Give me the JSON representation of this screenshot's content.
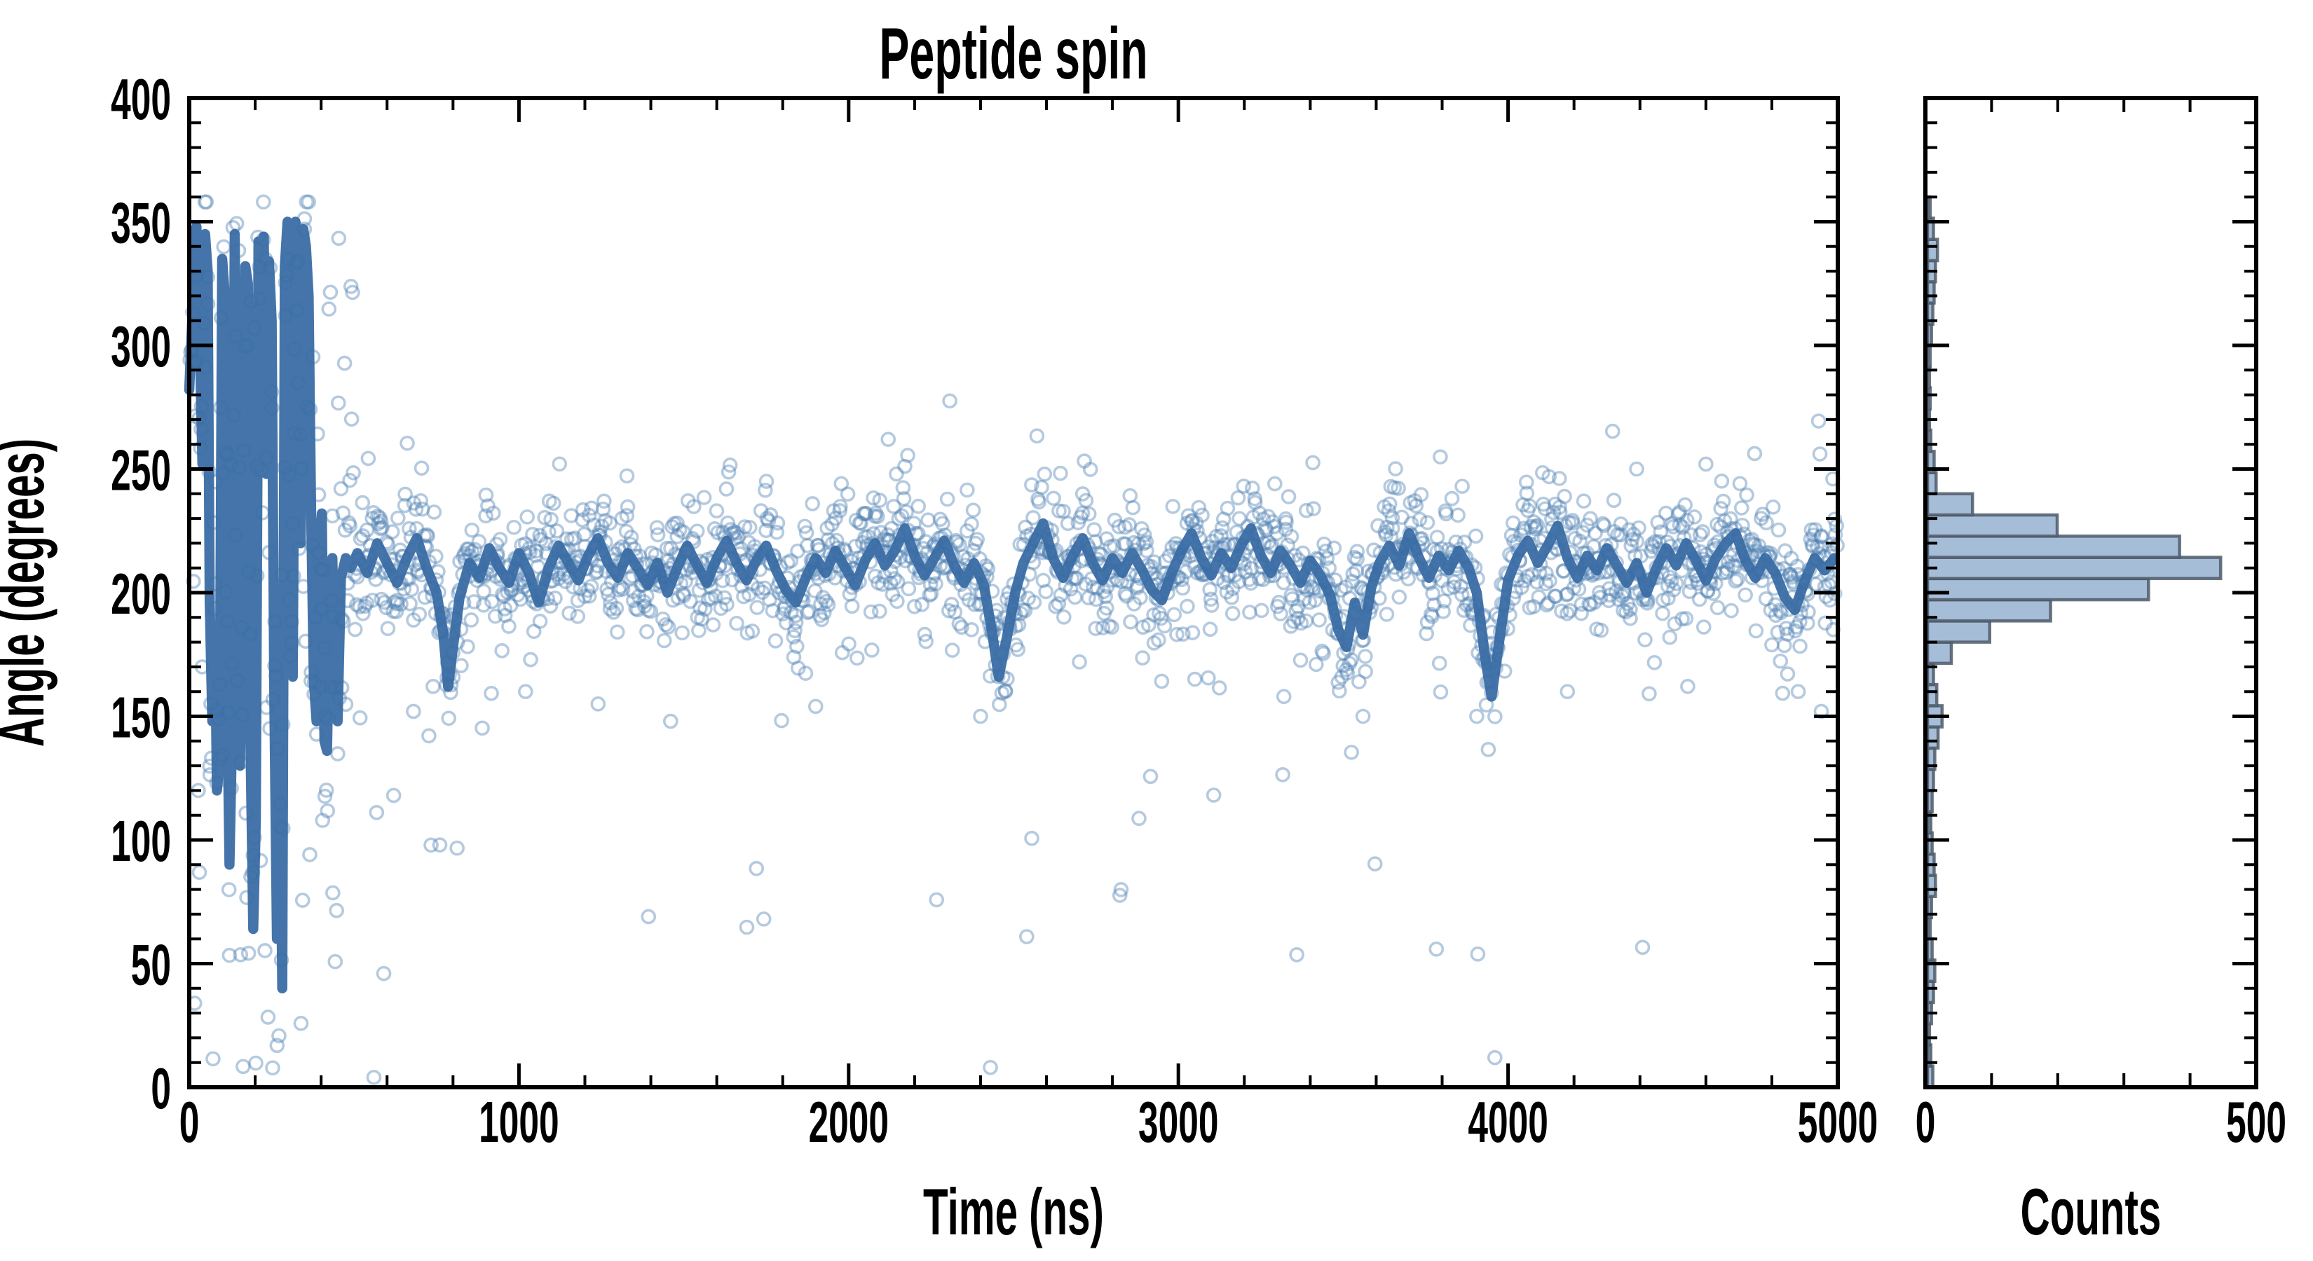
{
  "figure": {
    "title": "Peptide spin",
    "background": "#ffffff"
  },
  "main_plot": {
    "xlabel": "Time (ns)",
    "ylabel": "Angle (degrees)",
    "xlim": [
      0,
      5000
    ],
    "ylim": [
      0,
      400
    ],
    "x_major_ticks": [
      0,
      1000,
      2000,
      3000,
      4000,
      5000
    ],
    "x_minor_step": 200,
    "y_major_ticks": [
      0,
      50,
      100,
      150,
      200,
      250,
      300,
      350,
      400
    ],
    "y_minor_step": 10
  },
  "histogram_panel": {
    "xlabel": "Counts",
    "xlim": [
      0,
      500
    ],
    "x_major_ticks": [
      0,
      500
    ],
    "x_minor_step": 100
  },
  "style": {
    "scatter_color": "#4f81b2",
    "scatter_opacity": 0.42,
    "line_color": "#3a6da4",
    "hist_fill": "#a6bdd8",
    "hist_edge": "#4e5a68",
    "axis_color": "#000000"
  },
  "chart_data": [
    {
      "type": "scatter",
      "name": "angle-samples",
      "n": 2000,
      "t_range": [
        0,
        5000
      ],
      "transient_end_ns": 500,
      "transient": {
        "frac_uniform": 0.35,
        "uniform_range": [
          5,
          355
        ],
        "gauss_sd": 28
      },
      "steady": {
        "gauss_sd": 13,
        "wide_sd": 32,
        "frac_wide": 0.03,
        "frac_low": 0.015,
        "low_range": [
          40,
          200
        ]
      },
      "seed": 20240613,
      "marker_radius": 9,
      "marker_stroke": 3.6,
      "outliers": [
        [
          560,
          4
        ],
        [
          590,
          46
        ],
        [
          620,
          118
        ],
        [
          680,
          152
        ],
        [
          760,
          98
        ],
        [
          1020,
          160
        ],
        [
          1240,
          155
        ],
        [
          1460,
          148
        ],
        [
          1900,
          154
        ],
        [
          2120,
          262
        ],
        [
          2145,
          248
        ],
        [
          2400,
          150
        ],
        [
          2430,
          8
        ],
        [
          2700,
          172
        ],
        [
          3050,
          165
        ],
        [
          3320,
          158
        ],
        [
          3560,
          150
        ],
        [
          3905,
          150
        ],
        [
          3960,
          12
        ],
        [
          4180,
          160
        ],
        [
          4390,
          250
        ],
        [
          4600,
          252
        ],
        [
          4880,
          160
        ],
        [
          4950,
          152
        ],
        [
          4985,
          246
        ]
      ]
    },
    {
      "type": "line",
      "name": "running-average",
      "stroke_width": 14.5,
      "points": [
        [
          0,
          282
        ],
        [
          12,
          320
        ],
        [
          22,
          348
        ],
        [
          32,
          300
        ],
        [
          40,
          252
        ],
        [
          48,
          345
        ],
        [
          56,
          330
        ],
        [
          62,
          196
        ],
        [
          70,
          148
        ],
        [
          78,
          186
        ],
        [
          84,
          120
        ],
        [
          92,
          132
        ],
        [
          100,
          335
        ],
        [
          108,
          320
        ],
        [
          116,
          150
        ],
        [
          122,
          90
        ],
        [
          130,
          144
        ],
        [
          138,
          345
        ],
        [
          146,
          196
        ],
        [
          154,
          130
        ],
        [
          162,
          202
        ],
        [
          170,
          332
        ],
        [
          178,
          325
        ],
        [
          186,
          136
        ],
        [
          194,
          64
        ],
        [
          202,
          108
        ],
        [
          210,
          342
        ],
        [
          218,
          256
        ],
        [
          226,
          344
        ],
        [
          234,
          248
        ],
        [
          242,
          334
        ],
        [
          250,
          310
        ],
        [
          258,
          156
        ],
        [
          266,
          60
        ],
        [
          274,
          150
        ],
        [
          282,
          40
        ],
        [
          290,
          332
        ],
        [
          298,
          350
        ],
        [
          306,
          206
        ],
        [
          314,
          166
        ],
        [
          322,
          350
        ],
        [
          330,
          300
        ],
        [
          338,
          220
        ],
        [
          346,
          347
        ],
        [
          354,
          340
        ],
        [
          362,
          320
        ],
        [
          370,
          230
        ],
        [
          378,
          164
        ],
        [
          386,
          148
        ],
        [
          394,
          216
        ],
        [
          402,
          232
        ],
        [
          410,
          140
        ],
        [
          418,
          136
        ],
        [
          426,
          200
        ],
        [
          434,
          214
        ],
        [
          442,
          158
        ],
        [
          450,
          148
        ],
        [
          460,
          206
        ],
        [
          475,
          214
        ],
        [
          490,
          210
        ],
        [
          510,
          216
        ],
        [
          540,
          208
        ],
        [
          570,
          220
        ],
        [
          600,
          212
        ],
        [
          630,
          204
        ],
        [
          660,
          214
        ],
        [
          690,
          222
        ],
        [
          720,
          210
        ],
        [
          750,
          200
        ],
        [
          770,
          184
        ],
        [
          785,
          162
        ],
        [
          800,
          178
        ],
        [
          820,
          198
        ],
        [
          850,
          212
        ],
        [
          880,
          206
        ],
        [
          910,
          218
        ],
        [
          940,
          210
        ],
        [
          970,
          204
        ],
        [
          1000,
          216
        ],
        [
          1030,
          208
        ],
        [
          1060,
          196
        ],
        [
          1090,
          210
        ],
        [
          1120,
          219
        ],
        [
          1150,
          212
        ],
        [
          1180,
          205
        ],
        [
          1210,
          215
        ],
        [
          1240,
          222
        ],
        [
          1270,
          212
        ],
        [
          1300,
          206
        ],
        [
          1330,
          216
        ],
        [
          1360,
          210
        ],
        [
          1390,
          203
        ],
        [
          1420,
          212
        ],
        [
          1450,
          200
        ],
        [
          1480,
          210
        ],
        [
          1510,
          219
        ],
        [
          1540,
          211
        ],
        [
          1570,
          204
        ],
        [
          1600,
          214
        ],
        [
          1630,
          221
        ],
        [
          1660,
          212
        ],
        [
          1690,
          205
        ],
        [
          1720,
          213
        ],
        [
          1750,
          219
        ],
        [
          1780,
          209
        ],
        [
          1810,
          201
        ],
        [
          1840,
          196
        ],
        [
          1870,
          206
        ],
        [
          1900,
          214
        ],
        [
          1930,
          208
        ],
        [
          1960,
          217
        ],
        [
          1990,
          210
        ],
        [
          2020,
          203
        ],
        [
          2050,
          213
        ],
        [
          2080,
          220
        ],
        [
          2110,
          211
        ],
        [
          2140,
          217
        ],
        [
          2170,
          226
        ],
        [
          2200,
          215
        ],
        [
          2230,
          207
        ],
        [
          2260,
          214
        ],
        [
          2290,
          221
        ],
        [
          2320,
          211
        ],
        [
          2350,
          204
        ],
        [
          2380,
          212
        ],
        [
          2410,
          203
        ],
        [
          2435,
          184
        ],
        [
          2455,
          166
        ],
        [
          2480,
          182
        ],
        [
          2505,
          200
        ],
        [
          2530,
          212
        ],
        [
          2560,
          220
        ],
        [
          2590,
          228
        ],
        [
          2620,
          214
        ],
        [
          2650,
          206
        ],
        [
          2680,
          215
        ],
        [
          2710,
          222
        ],
        [
          2740,
          212
        ],
        [
          2770,
          205
        ],
        [
          2800,
          214
        ],
        [
          2830,
          208
        ],
        [
          2860,
          216
        ],
        [
          2890,
          209
        ],
        [
          2920,
          201
        ],
        [
          2950,
          197
        ],
        [
          2980,
          208
        ],
        [
          3010,
          217
        ],
        [
          3040,
          224
        ],
        [
          3070,
          214
        ],
        [
          3100,
          207
        ],
        [
          3130,
          216
        ],
        [
          3160,
          210
        ],
        [
          3190,
          219
        ],
        [
          3220,
          226
        ],
        [
          3250,
          215
        ],
        [
          3280,
          208
        ],
        [
          3310,
          217
        ],
        [
          3340,
          211
        ],
        [
          3370,
          204
        ],
        [
          3400,
          213
        ],
        [
          3430,
          207
        ],
        [
          3460,
          199
        ],
        [
          3485,
          185
        ],
        [
          3510,
          178
        ],
        [
          3535,
          196
        ],
        [
          3560,
          183
        ],
        [
          3585,
          202
        ],
        [
          3610,
          212
        ],
        [
          3640,
          219
        ],
        [
          3670,
          211
        ],
        [
          3700,
          224
        ],
        [
          3730,
          214
        ],
        [
          3760,
          206
        ],
        [
          3790,
          215
        ],
        [
          3820,
          209
        ],
        [
          3850,
          217
        ],
        [
          3880,
          210
        ],
        [
          3905,
          200
        ],
        [
          3930,
          174
        ],
        [
          3950,
          158
        ],
        [
          3975,
          182
        ],
        [
          4000,
          205
        ],
        [
          4030,
          215
        ],
        [
          4060,
          221
        ],
        [
          4090,
          212
        ],
        [
          4120,
          219
        ],
        [
          4150,
          227
        ],
        [
          4180,
          214
        ],
        [
          4210,
          206
        ],
        [
          4240,
          215
        ],
        [
          4270,
          209
        ],
        [
          4300,
          218
        ],
        [
          4330,
          211
        ],
        [
          4360,
          204
        ],
        [
          4390,
          212
        ],
        [
          4420,
          200
        ],
        [
          4450,
          210
        ],
        [
          4480,
          218
        ],
        [
          4510,
          211
        ],
        [
          4540,
          220
        ],
        [
          4570,
          213
        ],
        [
          4600,
          205
        ],
        [
          4630,
          214
        ],
        [
          4660,
          220
        ],
        [
          4690,
          224
        ],
        [
          4720,
          213
        ],
        [
          4750,
          206
        ],
        [
          4780,
          214
        ],
        [
          4810,
          208
        ],
        [
          4840,
          198
        ],
        [
          4870,
          193
        ],
        [
          4900,
          205
        ],
        [
          4930,
          214
        ],
        [
          4960,
          209
        ],
        [
          4990,
          214
        ]
      ]
    },
    {
      "type": "bar",
      "name": "angle-histogram",
      "orientation": "horizontal",
      "bin_start": 0,
      "bin_width": 8.5714,
      "counts": [
        8,
        5,
        3,
        6,
        9,
        11,
        7,
        4,
        6,
        12,
        10,
        7,
        5,
        7,
        9,
        11,
        16,
        22,
        14,
        9,
        36,
        94,
        186,
        334,
        443,
        381,
        196,
        68,
        13,
        10,
        5,
        3,
        4,
        3,
        4,
        6,
        8,
        10,
        12,
        15,
        9,
        4
      ]
    }
  ]
}
